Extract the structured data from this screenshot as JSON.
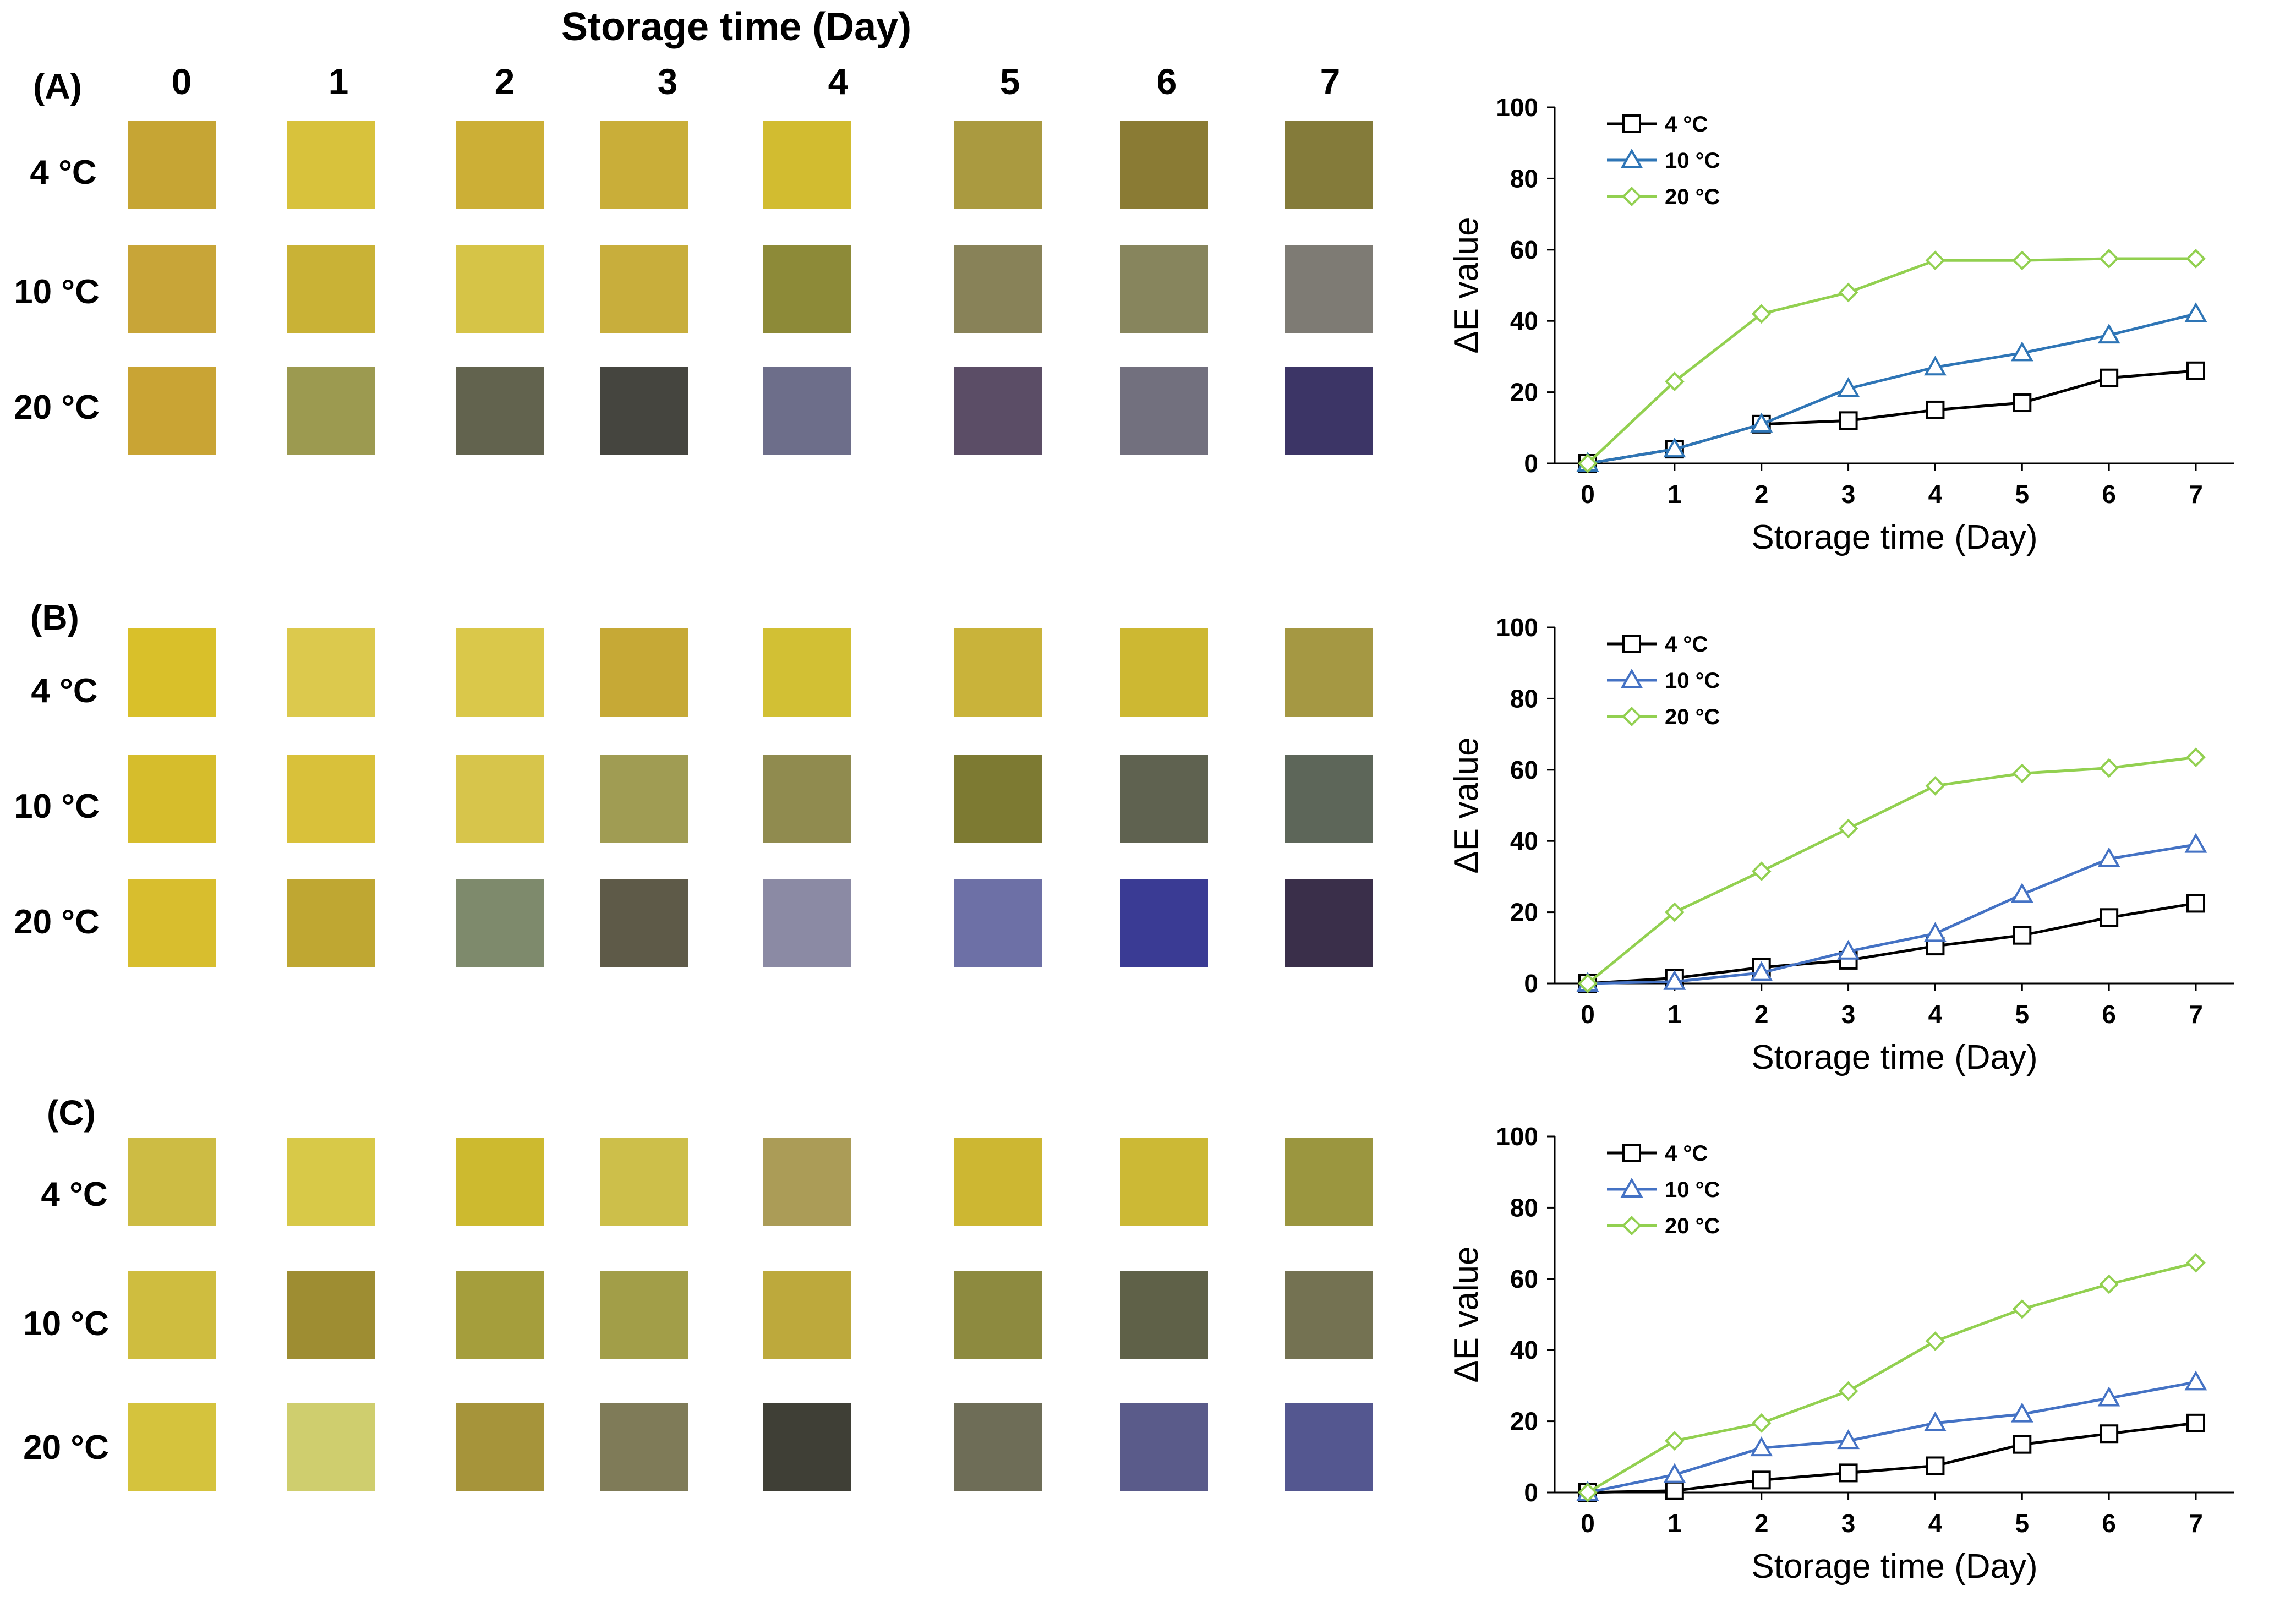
{
  "figure": {
    "header_title": "Storage time (Day)",
    "days": [
      "0",
      "1",
      "2",
      "3",
      "4",
      "5",
      "6",
      "7"
    ],
    "row_labels": [
      "4 °C",
      "10 °C",
      "20 °C"
    ],
    "panels": [
      {
        "label": "(A)",
        "swatch_colors": [
          [
            "#c6a534",
            "#d8c23c",
            "#ccaf36",
            "#c9ae39",
            "#d2bc30",
            "#aa9a40",
            "#8a7b34",
            "#847b3a"
          ],
          [
            "#c8a538",
            "#c9b236",
            "#d6c447",
            "#c8ae3c",
            "#8d8a38",
            "#888258",
            "#87855d",
            "#7e7b74"
          ],
          [
            "#c9a434",
            "#9c9a50",
            "#62634e",
            "#45453f",
            "#6d6e8a",
            "#5b4d66",
            "#72707e",
            "#3c3566"
          ]
        ]
      },
      {
        "label": "(B)",
        "swatch_colors": [
          [
            "#d9c02a",
            "#dcc94d",
            "#dac84a",
            "#c6a936",
            "#d2c034",
            "#c9b33a",
            "#cdb832",
            "#a59843"
          ],
          [
            "#d6bd2c",
            "#d9c13a",
            "#d7c54b",
            "#a09c53",
            "#908b4f",
            "#7d7a32",
            "#5f6250",
            "#5d6659"
          ],
          [
            "#d8be2e",
            "#bfa732",
            "#7e8a6c",
            "#5e5a48",
            "#8b8aa4",
            "#6d70a6",
            "#3a3b94",
            "#3a2f4a"
          ]
        ]
      },
      {
        "label": "(C)",
        "swatch_colors": [
          [
            "#cdbc44",
            "#d8c948",
            "#cdba2f",
            "#cdbf4a",
            "#ab9c57",
            "#cdb732",
            "#ccb935",
            "#9b963f"
          ],
          [
            "#cfbd3f",
            "#9e8d32",
            "#a59e3c",
            "#a29e48",
            "#bda93c",
            "#8d8a3f",
            "#5f6148",
            "#747252"
          ],
          [
            "#d5c33d",
            "#cfce6e",
            "#a6943a",
            "#7f7b58",
            "#3f3f36",
            "#6e6d57",
            "#5a5b8a",
            "#545790"
          ]
        ]
      }
    ]
  },
  "chart_data": [
    {
      "type": "line",
      "title": "(A)",
      "xlabel": "Storage time (Day)",
      "ylabel": "ΔE value",
      "x": [
        0,
        1,
        2,
        3,
        4,
        5,
        6,
        7
      ],
      "xticks": [
        "0",
        "1",
        "2",
        "3",
        "4",
        "5",
        "6",
        "7"
      ],
      "yticks": [
        "0",
        "20",
        "40",
        "60",
        "80",
        "100"
      ],
      "ylim": [
        0,
        100
      ],
      "legend_position": "top-left",
      "series": [
        {
          "name": "4 °C",
          "marker": "square",
          "color": "#000000",
          "values": [
            0,
            4,
            11,
            12,
            15,
            17,
            24,
            26
          ]
        },
        {
          "name": "10 °C",
          "marker": "triangle",
          "color": "#2e75b6",
          "values": [
            0,
            4,
            11,
            21,
            27,
            31,
            36,
            42
          ]
        },
        {
          "name": "20 °C",
          "marker": "diamond",
          "color": "#92d050",
          "values": [
            0,
            23,
            42,
            48,
            57,
            57,
            57.5,
            57.5
          ]
        }
      ]
    },
    {
      "type": "line",
      "title": "(B)",
      "xlabel": "Storage time (Day)",
      "ylabel": "ΔE value",
      "x": [
        0,
        1,
        2,
        3,
        4,
        5,
        6,
        7
      ],
      "xticks": [
        "0",
        "1",
        "2",
        "3",
        "4",
        "5",
        "6",
        "7"
      ],
      "yticks": [
        "0",
        "20",
        "40",
        "60",
        "80",
        "100"
      ],
      "ylim": [
        0,
        100
      ],
      "legend_position": "top-left",
      "series": [
        {
          "name": "4 °C",
          "marker": "square",
          "color": "#000000",
          "values": [
            0,
            1.5,
            4.5,
            6.5,
            10.5,
            13.5,
            18.5,
            22.5
          ]
        },
        {
          "name": "10 °C",
          "marker": "triangle",
          "color": "#4472c4",
          "values": [
            0,
            0.5,
            3,
            9,
            14,
            25,
            35,
            39
          ]
        },
        {
          "name": "20 °C",
          "marker": "diamond",
          "color": "#92d050",
          "values": [
            0,
            20,
            31.5,
            43.5,
            55.5,
            59,
            60.5,
            63.5
          ]
        }
      ]
    },
    {
      "type": "line",
      "title": "(C)",
      "xlabel": "Storage time (Day)",
      "ylabel": "ΔE value",
      "x": [
        0,
        1,
        2,
        3,
        4,
        5,
        6,
        7
      ],
      "xticks": [
        "0",
        "1",
        "2",
        "3",
        "4",
        "5",
        "6",
        "7"
      ],
      "yticks": [
        "0",
        "20",
        "40",
        "60",
        "80",
        "100"
      ],
      "ylim": [
        0,
        100
      ],
      "legend_position": "top-left",
      "series": [
        {
          "name": "4 °C",
          "marker": "square",
          "color": "#000000",
          "values": [
            0,
            0.5,
            3.5,
            5.5,
            7.5,
            13.5,
            16.5,
            19.5
          ]
        },
        {
          "name": "10 °C",
          "marker": "triangle",
          "color": "#4472c4",
          "values": [
            0,
            5,
            12.5,
            14.5,
            19.5,
            22,
            26.5,
            31
          ]
        },
        {
          "name": "20 °C",
          "marker": "diamond",
          "color": "#92d050",
          "values": [
            0,
            14.5,
            19.5,
            28.5,
            42.5,
            51.5,
            58.5,
            64.5
          ]
        }
      ]
    }
  ]
}
